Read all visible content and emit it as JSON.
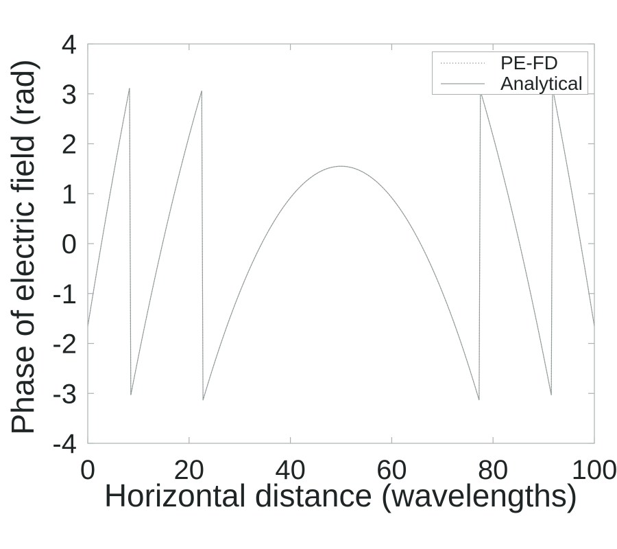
{
  "figure": {
    "background_color": "#ffffff",
    "text_color": "#1f2424",
    "axis_color": "#aab1b1",
    "analytical_color": "#98a0a0",
    "pefd_color": "#8a9292"
  },
  "chart_data": {
    "type": "line",
    "title": "",
    "xlabel": "Horizontal distance (wavelengths)",
    "ylabel": "Phase of electric field (rad)",
    "xlim": [
      0,
      100
    ],
    "ylim": [
      -4,
      4
    ],
    "xticks": [
      0,
      20,
      40,
      60,
      80,
      100
    ],
    "yticks": [
      -4,
      -3,
      -2,
      -1,
      0,
      1,
      2,
      3,
      4
    ],
    "grid": false,
    "box": true,
    "legend": {
      "position": "top-right",
      "entries": [
        {
          "label": "PE-FD",
          "style": "dotted"
        },
        {
          "label": "Analytical",
          "style": "solid"
        }
      ]
    },
    "description": "Phase wrapped to (-pi, pi] of a parabolic phase front centered at x=50; PE-FD and Analytical curves coincide. Peak value 1.55 rad at x=50; wrap discontinuities (jumps between -3.14 and +3.14) at x = 8.3, 22.7, 77.3, 91.7; endpoints at phase -1.66 rad.",
    "phase_model": {
      "formula": "phase(x) = wrap_to_pi(peak - curvature*(x-center)^2)",
      "peak": 1.55,
      "curvature": 0.00631,
      "center": 50,
      "wrap_low": -3.14159,
      "wrap_high": 3.14159,
      "wrap_x_positions": [
        8.3,
        22.74,
        77.26,
        91.7
      ],
      "sample_step": 0.25
    },
    "x_samples": [
      0,
      5,
      10,
      15,
      20,
      25,
      30,
      35,
      40,
      45,
      50,
      55,
      60,
      65,
      70,
      75,
      80,
      85,
      90,
      95,
      100
    ],
    "series": [
      {
        "name": "PE-FD",
        "style": "dotted",
        "y_samples": [
          -1.66,
          1.34,
          -2.26,
          0.1,
          2.15,
          -2.39,
          -0.97,
          0.13,
          0.92,
          1.39,
          1.55,
          1.39,
          0.92,
          0.13,
          -0.97,
          -2.39,
          2.15,
          0.1,
          -2.26,
          1.34,
          -1.66
        ]
      },
      {
        "name": "Analytical",
        "style": "solid",
        "y_samples": [
          -1.66,
          1.34,
          -2.26,
          0.1,
          2.15,
          -2.39,
          -0.97,
          0.13,
          0.92,
          1.39,
          1.55,
          1.39,
          0.92,
          0.13,
          -0.97,
          -2.39,
          2.15,
          0.1,
          -2.26,
          1.34,
          -1.66
        ]
      }
    ]
  }
}
